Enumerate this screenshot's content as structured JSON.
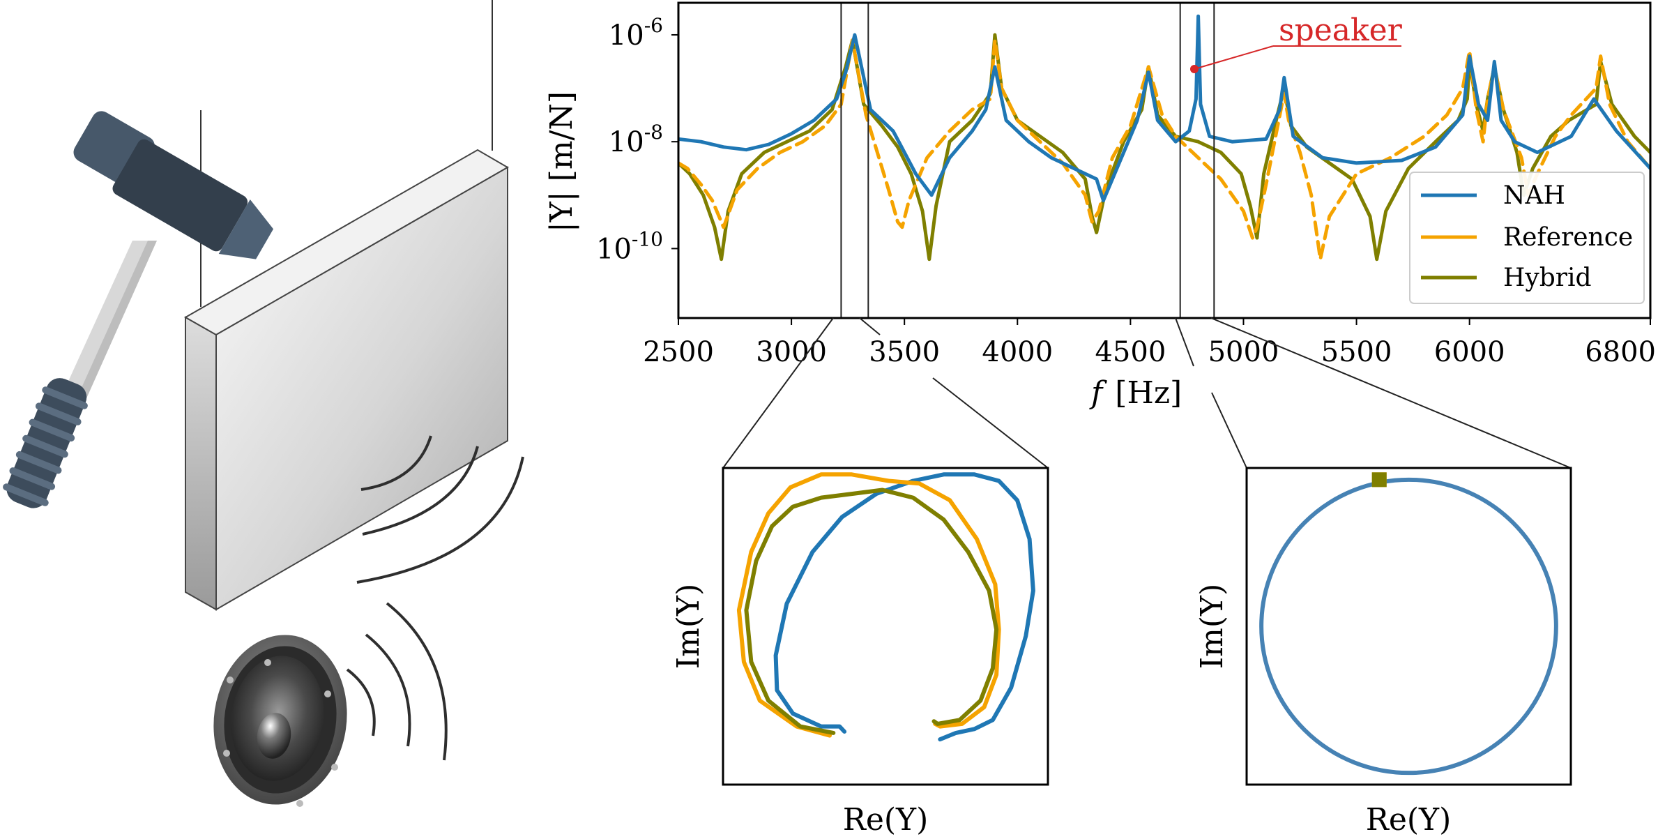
{
  "chart_data": [
    {
      "type": "line",
      "xlabel": "f [Hz]",
      "ylabel": "|Y| [m/N]",
      "xlim": [
        2500,
        6800
      ],
      "ylim_log10": [
        -11.3,
        -5.4
      ],
      "y_scale": "log",
      "x_ticks": [
        "2500",
        "3000",
        "3500",
        "4000",
        "4500",
        "5000",
        "5500",
        "6000",
        "6800"
      ],
      "x_tick_values": [
        2500,
        3000,
        3500,
        4000,
        4500,
        5000,
        5500,
        6000,
        6800
      ],
      "y_ticks": [
        {
          "base": "10",
          "exp": "-6",
          "value_log10": -6
        },
        {
          "base": "10",
          "exp": "-8",
          "value_log10": -8
        },
        {
          "base": "10",
          "exp": "-10",
          "value_log10": -10
        }
      ],
      "legend": {
        "position": "lower-right",
        "entries": [
          "NAH",
          "Reference",
          "Hybrid"
        ]
      },
      "annotation": {
        "text": "speaker",
        "x": 4800,
        "y_log10": -6.6
      },
      "zoom_bands": [
        [
          3220,
          3340
        ],
        [
          4720,
          4870
        ]
      ],
      "series": [
        {
          "name": "NAH",
          "color": "#1f77b4",
          "dash": "solid",
          "x": [
            2500,
            2600,
            2700,
            2800,
            2900,
            3000,
            3100,
            3200,
            3240,
            3280,
            3350,
            3450,
            3550,
            3620,
            3700,
            3800,
            3860,
            3900,
            3950,
            4050,
            4150,
            4250,
            4350,
            4380,
            4450,
            4530,
            4580,
            4620,
            4700,
            4760,
            4790,
            4800,
            4810,
            4850,
            4950,
            5100,
            5160,
            5180,
            5220,
            5350,
            5500,
            5700,
            5850,
            5970,
            6000,
            6040,
            6080,
            6110,
            6140,
            6200,
            6300,
            6450,
            6550,
            6650,
            6800
          ],
          "y_log10": [
            -7.95,
            -8.0,
            -8.1,
            -8.15,
            -8.05,
            -7.85,
            -7.6,
            -7.2,
            -6.7,
            -6.0,
            -7.4,
            -7.8,
            -8.6,
            -9.0,
            -8.3,
            -7.8,
            -7.4,
            -6.6,
            -7.6,
            -8.0,
            -8.3,
            -8.5,
            -8.7,
            -9.1,
            -8.4,
            -7.6,
            -6.7,
            -7.6,
            -8.0,
            -7.8,
            -7.2,
            -5.65,
            -7.3,
            -7.9,
            -8.0,
            -7.95,
            -7.4,
            -6.8,
            -7.9,
            -8.3,
            -8.4,
            -8.35,
            -8.1,
            -7.5,
            -6.4,
            -7.3,
            -7.6,
            -6.5,
            -7.6,
            -8.0,
            -8.2,
            -7.9,
            -7.2,
            -7.8,
            -8.5
          ]
        },
        {
          "name": "Reference",
          "color": "#f5a300",
          "dash": "dashed",
          "x": [
            2500,
            2540,
            2600,
            2650,
            2700,
            2760,
            2850,
            2950,
            3050,
            3150,
            3220,
            3270,
            3330,
            3380,
            3430,
            3470,
            3490,
            3520,
            3600,
            3700,
            3800,
            3880,
            3900,
            3930,
            4000,
            4100,
            4200,
            4300,
            4330,
            4360,
            4420,
            4500,
            4580,
            4640,
            4700,
            4800,
            4900,
            5000,
            5040,
            5060,
            5100,
            5170,
            5180,
            5200,
            5250,
            5300,
            5340,
            5380,
            5500,
            5650,
            5800,
            5900,
            5970,
            6000,
            6030,
            6060,
            6080,
            6110,
            6150,
            6230,
            6260,
            6300,
            6380,
            6450,
            6560,
            6580,
            6620,
            6700,
            6760,
            6800
          ],
          "y_log10": [
            -8.4,
            -8.5,
            -8.8,
            -9.1,
            -9.6,
            -8.9,
            -8.5,
            -8.2,
            -8.0,
            -7.7,
            -7.3,
            -6.1,
            -7.5,
            -8.2,
            -8.9,
            -9.5,
            -9.6,
            -9.1,
            -8.3,
            -7.8,
            -7.4,
            -7.2,
            -6.1,
            -7.0,
            -7.6,
            -8.0,
            -8.4,
            -9.0,
            -9.5,
            -9.3,
            -8.3,
            -7.7,
            -6.6,
            -7.5,
            -7.9,
            -8.3,
            -8.7,
            -9.3,
            -9.8,
            -9.6,
            -8.8,
            -7.3,
            -7.1,
            -7.6,
            -8.2,
            -9.0,
            -10.2,
            -9.4,
            -8.6,
            -8.3,
            -7.9,
            -7.5,
            -7.0,
            -6.3,
            -7.4,
            -8.0,
            -7.2,
            -6.6,
            -7.4,
            -8.3,
            -9.0,
            -8.6,
            -7.9,
            -7.5,
            -7.0,
            -6.4,
            -7.3,
            -8.0,
            -8.3,
            -8.5
          ]
        },
        {
          "name": "Hybrid",
          "color": "#7f7f00",
          "dash": "solid",
          "x": [
            2500,
            2550,
            2610,
            2660,
            2690,
            2720,
            2780,
            2880,
            2980,
            3080,
            3180,
            3240,
            3270,
            3320,
            3400,
            3470,
            3530,
            3580,
            3610,
            3640,
            3700,
            3800,
            3880,
            3900,
            3930,
            4000,
            4100,
            4200,
            4300,
            4330,
            4350,
            4390,
            4470,
            4550,
            4580,
            4620,
            4700,
            4800,
            4900,
            4990,
            5030,
            5060,
            5090,
            5150,
            5180,
            5210,
            5280,
            5380,
            5480,
            5560,
            5590,
            5630,
            5730,
            5850,
            5950,
            5990,
            6000,
            6030,
            6060,
            6080,
            6110,
            6150,
            6210,
            6240,
            6280,
            6360,
            6440,
            6560,
            6580,
            6630,
            6730,
            6800
          ],
          "y_log10": [
            -8.4,
            -8.6,
            -9.0,
            -9.6,
            -10.2,
            -9.3,
            -8.6,
            -8.2,
            -8.0,
            -7.8,
            -7.4,
            -6.6,
            -6.1,
            -7.3,
            -7.7,
            -8.1,
            -8.6,
            -9.3,
            -10.2,
            -9.2,
            -8.0,
            -7.6,
            -7.1,
            -6.0,
            -7.0,
            -7.6,
            -7.9,
            -8.2,
            -8.7,
            -9.4,
            -9.7,
            -8.9,
            -8.0,
            -7.4,
            -6.6,
            -7.5,
            -7.9,
            -8.0,
            -8.2,
            -8.6,
            -9.2,
            -9.8,
            -8.6,
            -7.5,
            -7.0,
            -7.7,
            -8.1,
            -8.4,
            -8.7,
            -9.4,
            -10.2,
            -9.3,
            -8.5,
            -8.0,
            -7.6,
            -7.2,
            -6.5,
            -7.3,
            -7.8,
            -7.2,
            -6.6,
            -7.4,
            -8.2,
            -9.0,
            -8.5,
            -7.9,
            -7.6,
            -7.3,
            -6.5,
            -7.3,
            -7.9,
            -8.2
          ]
        }
      ]
    },
    {
      "type": "line",
      "xlabel": "Re(Y)",
      "ylabel": "Im(Y)",
      "x_ticks": [],
      "y_ticks": [],
      "xlim": [
        -1.35,
        1.3
      ],
      "ylim": [
        -0.35,
        2.1
      ],
      "series": [
        {
          "name": "NAH",
          "color": "#1f77b4",
          "x": [
            0.42,
            0.55,
            0.7,
            0.85,
            1.0,
            1.12,
            1.18,
            1.15,
            1.05,
            0.9,
            0.7,
            0.45,
            0.2,
            -0.1,
            -0.38,
            -0.62,
            -0.83,
            -0.92,
            -0.91,
            -0.78,
            -0.55,
            -0.4,
            -0.36
          ],
          "y": [
            0.0,
            0.05,
            0.08,
            0.15,
            0.4,
            0.8,
            1.15,
            1.55,
            1.85,
            2.0,
            2.05,
            2.05,
            2.0,
            1.9,
            1.72,
            1.45,
            1.05,
            0.65,
            0.38,
            0.2,
            0.1,
            0.1,
            0.06
          ]
        },
        {
          "name": "Reference",
          "color": "#f5a300",
          "x": [
            -0.48,
            -0.75,
            -1.05,
            -1.18,
            -1.22,
            -1.12,
            -0.98,
            -0.8,
            -0.55,
            -0.3,
            0.0,
            0.25,
            0.5,
            0.72,
            0.87,
            0.9,
            0.88,
            0.78,
            0.6,
            0.42,
            0.38
          ],
          "y": [
            0.03,
            0.1,
            0.3,
            0.6,
            1.0,
            1.45,
            1.75,
            1.95,
            2.05,
            2.05,
            2.0,
            1.98,
            1.85,
            1.55,
            1.2,
            0.85,
            0.5,
            0.25,
            0.12,
            0.1,
            0.12
          ]
        },
        {
          "name": "Hybrid",
          "color": "#7f7f00",
          "x": [
            -0.45,
            -0.72,
            -0.98,
            -1.12,
            -1.16,
            -1.08,
            -0.95,
            -0.78,
            -0.55,
            -0.3,
            -0.05,
            0.2,
            0.45,
            0.65,
            0.82,
            0.88,
            0.85,
            0.75,
            0.58,
            0.4,
            0.37
          ],
          "y": [
            0.05,
            0.1,
            0.3,
            0.6,
            1.0,
            1.38,
            1.65,
            1.8,
            1.87,
            1.9,
            1.93,
            1.87,
            1.7,
            1.45,
            1.15,
            0.85,
            0.55,
            0.3,
            0.15,
            0.12,
            0.14
          ]
        }
      ]
    },
    {
      "type": "line",
      "xlabel": "Re(Y)",
      "ylabel": "Im(Y)",
      "x_ticks": [],
      "y_ticks": [],
      "xlim": [
        -1.1,
        1.1
      ],
      "ylim": [
        -0.08,
        2.08
      ],
      "series": [
        {
          "name": "NAH",
          "color": "#4682b4",
          "shape": "circle",
          "center": [
            0.0,
            1.0
          ],
          "radius": 1.0
        },
        {
          "name": "Reference",
          "color": "#f5a300",
          "x": [
            -0.2
          ],
          "y": [
            2.0
          ]
        },
        {
          "name": "Hybrid",
          "color": "#7f7f00",
          "x": [
            -0.2
          ],
          "y": [
            2.0
          ]
        }
      ]
    }
  ],
  "labels": {
    "main_xlabel_f": "f",
    "main_xlabel_unit": "[Hz]",
    "main_ylabel": "|Y| [m/N]",
    "main_ylabel_italic": "Y",
    "left_xlabel": "Re(Y)",
    "left_ylabel": "Im(Y)",
    "right_xlabel": "Re(Y)",
    "right_ylabel": "Im(Y)",
    "legend_nah": "NAH",
    "legend_reference": "Reference",
    "legend_hybrid": "Hybrid",
    "annotation": "speaker"
  },
  "colors": {
    "nah": "#1f77b4",
    "reference": "#f5a300",
    "hybrid": "#7f7f00",
    "speaker_annotation": "#d62728",
    "hammer_head": "#3c4a58",
    "hammer_handle": "#d9d9d9",
    "plate": "#c8c8c8"
  },
  "illustration": {
    "items": [
      "hammer-icon",
      "plate-icon",
      "speaker-icon",
      "sound-wave-icon"
    ]
  }
}
